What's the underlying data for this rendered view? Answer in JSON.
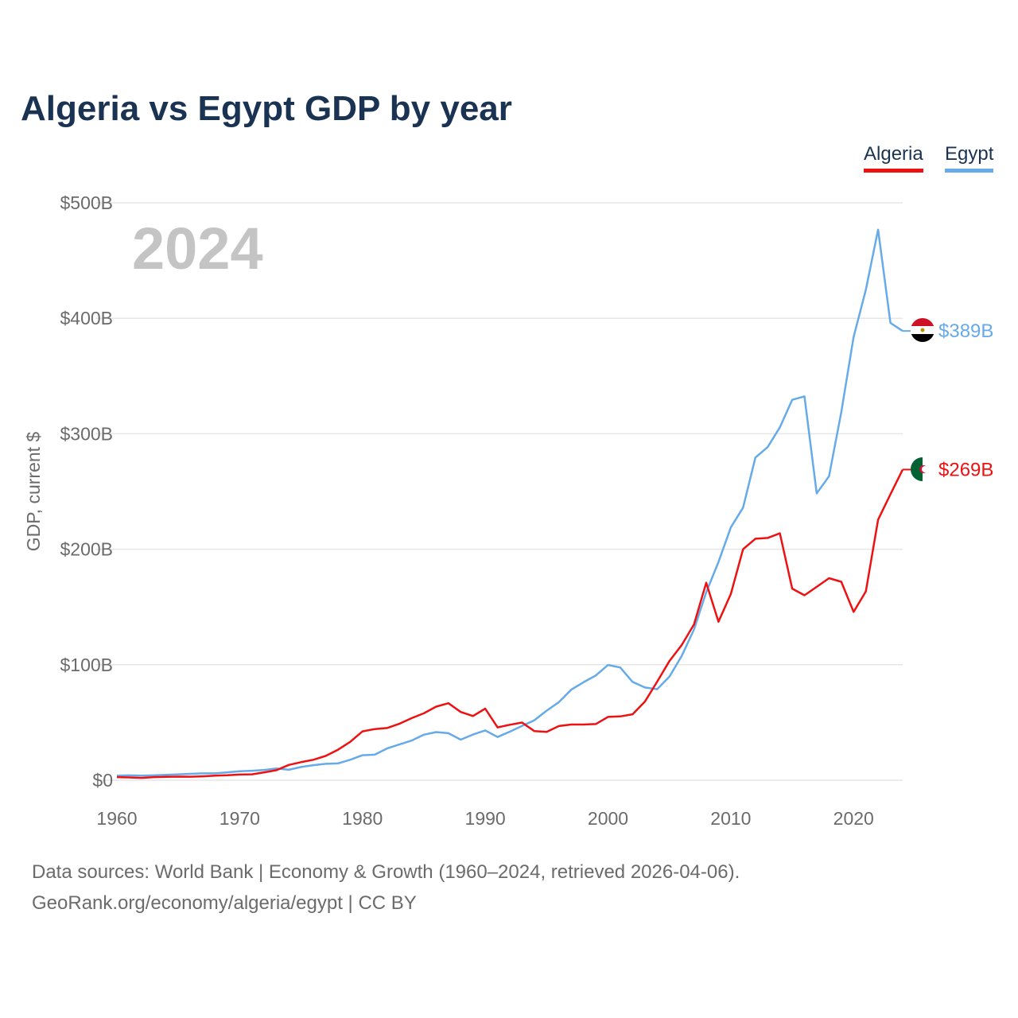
{
  "title": "Algeria vs Egypt GDP by year",
  "legend": {
    "algeria": "Algeria",
    "egypt": "Egypt"
  },
  "colors": {
    "algeria": "#ee1111",
    "egypt": "#66aaea",
    "title": "#1b3352",
    "grid": "#e6e6e6",
    "year_watermark": "#c4c4c4"
  },
  "source": {
    "line1": "Data sources: World Bank | Economy & Growth (1960–2024, retrieved 2026-04-06).",
    "line2": "GeoRank.org/economy/algeria/egypt | CC BY"
  },
  "chart_data": {
    "type": "line",
    "title": "Algeria vs Egypt GDP by year",
    "xlabel": "",
    "ylabel": "GDP, current $",
    "xlim": [
      1960,
      2024
    ],
    "ylim": [
      0,
      500
    ],
    "unit": "billion USD",
    "year_label": "2024",
    "x_ticks": [
      {
        "value": 1960,
        "label": "1960"
      },
      {
        "value": 1970,
        "label": "1970"
      },
      {
        "value": 1980,
        "label": "1980"
      },
      {
        "value": 1990,
        "label": "1990"
      },
      {
        "value": 2000,
        "label": "2000"
      },
      {
        "value": 2010,
        "label": "2010"
      },
      {
        "value": 2020,
        "label": "2020"
      }
    ],
    "y_ticks": [
      {
        "value": 0,
        "label": "$0"
      },
      {
        "value": 100,
        "label": "$100B"
      },
      {
        "value": 200,
        "label": "$200B"
      },
      {
        "value": 300,
        "label": "$300B"
      },
      {
        "value": 400,
        "label": "$400B"
      },
      {
        "value": 500,
        "label": "$500B"
      }
    ],
    "x": [
      1960,
      1961,
      1962,
      1963,
      1964,
      1965,
      1966,
      1967,
      1968,
      1969,
      1970,
      1971,
      1972,
      1973,
      1974,
      1975,
      1976,
      1977,
      1978,
      1979,
      1980,
      1981,
      1982,
      1983,
      1984,
      1985,
      1986,
      1987,
      1988,
      1989,
      1990,
      1991,
      1992,
      1993,
      1994,
      1995,
      1996,
      1997,
      1998,
      1999,
      2000,
      2001,
      2002,
      2003,
      2004,
      2005,
      2006,
      2007,
      2008,
      2009,
      2010,
      2011,
      2012,
      2013,
      2014,
      2015,
      2016,
      2017,
      2018,
      2019,
      2020,
      2021,
      2022,
      2023,
      2024
    ],
    "series": [
      {
        "name": "Algeria",
        "end_label": "$269B",
        "values": [
          2.7,
          2.4,
          2.0,
          2.7,
          2.9,
          3.1,
          3.0,
          3.4,
          3.9,
          4.3,
          4.9,
          5.1,
          6.8,
          8.7,
          13.2,
          15.6,
          17.7,
          21.0,
          26.4,
          33.2,
          42.3,
          44.3,
          45.2,
          48.8,
          53.7,
          57.9,
          63.7,
          66.7,
          59.1,
          55.6,
          62.0,
          45.7,
          48.0,
          49.9,
          42.5,
          41.8,
          46.9,
          48.2,
          48.2,
          48.6,
          54.8,
          55.2,
          57.1,
          68.0,
          85.3,
          103.2,
          117.0,
          134.9,
          171.0,
          137.2,
          161.2,
          200.0,
          209.1,
          209.8,
          213.8,
          165.9,
          160.1,
          167.4,
          174.9,
          171.8,
          145.7,
          163.5,
          225.6,
          247.6,
          269.0
        ]
      },
      {
        "name": "Egypt",
        "end_label": "$389B",
        "values": [
          4.0,
          4.2,
          4.0,
          4.2,
          4.6,
          5.1,
          5.5,
          5.9,
          5.9,
          6.8,
          7.7,
          8.2,
          8.9,
          10.1,
          9.0,
          11.4,
          13.0,
          14.2,
          14.5,
          17.7,
          21.6,
          22.1,
          27.5,
          30.9,
          34.3,
          39.4,
          41.7,
          40.7,
          35.1,
          39.5,
          43.1,
          37.4,
          42.0,
          47.0,
          51.9,
          60.2,
          67.6,
          78.4,
          84.8,
          90.7,
          99.8,
          97.6,
          85.1,
          80.3,
          78.8,
          89.7,
          107.5,
          130.5,
          162.8,
          189.0,
          218.9,
          236.0,
          279.4,
          288.4,
          305.6,
          329.4,
          332.4,
          248.4,
          263.2,
          318.7,
          383.8,
          424.7,
          476.7,
          396.0,
          389.0
        ]
      }
    ]
  }
}
